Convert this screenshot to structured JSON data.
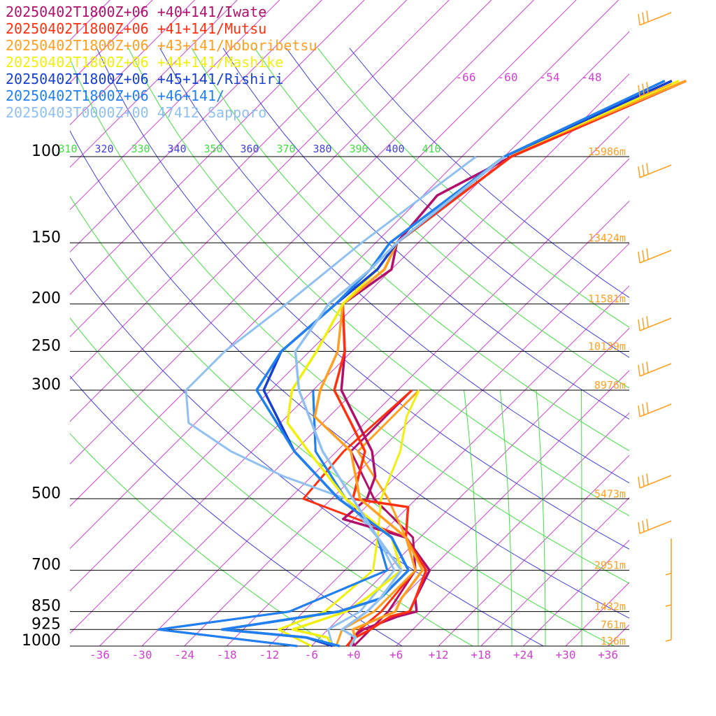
{
  "chart_data": {
    "type": "line",
    "title": "",
    "xlabel": "",
    "ylabel": "",
    "x_ticks": [
      "-36",
      "-30",
      "-24",
      "-18",
      "-12",
      "-6",
      "+0",
      "+6",
      "+12",
      "+18",
      "+24",
      "+30",
      "+36"
    ],
    "pressure_levels": [
      {
        "p": 100,
        "label": "100",
        "height": "15986m"
      },
      {
        "p": 150,
        "label": "150",
        "height": "13424m"
      },
      {
        "p": 200,
        "label": "200",
        "height": "11581m"
      },
      {
        "p": 250,
        "label": "250",
        "height": "10139m"
      },
      {
        "p": 300,
        "label": "300",
        "height": "8976m"
      },
      {
        "p": 500,
        "label": "500",
        "height": "5473m"
      },
      {
        "p": 700,
        "label": "700",
        "height": "2951m"
      },
      {
        "p": 850,
        "label": "850",
        "height": "1432m"
      },
      {
        "p": 925,
        "label": "925",
        "height": "761m"
      },
      {
        "p": 1000,
        "label": "1000",
        "height": "136m"
      }
    ],
    "theta_labels": [
      "310",
      "320",
      "330",
      "340",
      "350",
      "360",
      "370",
      "380",
      "390",
      "400",
      "410"
    ],
    "mixing_temp_labels": [
      "-66",
      "-60",
      "-54",
      "-48"
    ],
    "series": [
      {
        "name": "20250402T1800Z+06 +40+141/Iwate",
        "color": "#b0106c",
        "points": [
          [
            70,
            -33
          ],
          [
            100,
            -47
          ],
          [
            120,
            -52
          ],
          [
            150,
            -51
          ],
          [
            170,
            -48
          ],
          [
            200,
            -50
          ],
          [
            250,
            -43
          ],
          [
            300,
            -38
          ],
          [
            400,
            -25
          ],
          [
            450,
            -21
          ],
          [
            500,
            -19
          ],
          [
            550,
            -19.5
          ],
          [
            600,
            -8
          ],
          [
            700,
            0
          ],
          [
            800,
            2
          ],
          [
            850,
            4
          ],
          [
            870,
            2
          ],
          [
            925,
            -1
          ],
          [
            960,
            -1.5
          ],
          [
            1000,
            0
          ]
        ]
      },
      {
        "name": "20250402T1800Z+06 +41+141/Mutsu",
        "color": "#ff3010",
        "points": [
          [
            70,
            -33
          ],
          [
            100,
            -47
          ],
          [
            150,
            -51
          ],
          [
            170,
            -49
          ],
          [
            200,
            -50
          ],
          [
            250,
            -43
          ],
          [
            300,
            -39
          ],
          [
            350,
            -32
          ],
          [
            400,
            -26
          ],
          [
            500,
            -21
          ],
          [
            520,
            -12
          ],
          [
            600,
            -8
          ],
          [
            700,
            -0.5
          ],
          [
            800,
            2
          ],
          [
            850,
            3
          ],
          [
            870,
            1
          ],
          [
            925,
            0
          ],
          [
            960,
            -1
          ],
          [
            1000,
            -1
          ]
        ]
      },
      {
        "name": "20250402T1800Z+06 +43+141/Noboribetsu",
        "color": "#ffa020",
        "points": [
          [
            70,
            -33
          ],
          [
            100,
            -48
          ],
          [
            150,
            -51
          ],
          [
            170,
            -49
          ],
          [
            200,
            -50
          ],
          [
            250,
            -44
          ],
          [
            300,
            -41
          ],
          [
            340,
            -38
          ],
          [
            400,
            -28
          ],
          [
            500,
            -20
          ],
          [
            600,
            -8
          ],
          [
            700,
            -1
          ],
          [
            800,
            0
          ],
          [
            850,
            1
          ],
          [
            870,
            0
          ],
          [
            925,
            -2.5
          ],
          [
            960,
            -1
          ],
          [
            1000,
            -0.5
          ]
        ]
      },
      {
        "name": "20250402T1800Z+06 +44+141/Mashike",
        "color": "#f0f010",
        "points": [
          [
            70,
            -34
          ],
          [
            100,
            -48
          ],
          [
            150,
            -51
          ],
          [
            170,
            -50
          ],
          [
            200,
            -50
          ],
          [
            250,
            -47
          ],
          [
            300,
            -45
          ],
          [
            350,
            -41
          ],
          [
            400,
            -34
          ],
          [
            500,
            -22
          ],
          [
            600,
            -10
          ],
          [
            700,
            -4
          ],
          [
            800,
            -5
          ],
          [
            850,
            -6
          ],
          [
            925,
            -11
          ],
          [
            960,
            -5
          ],
          [
            1000,
            -3
          ]
        ]
      },
      {
        "name": "20250402T1800Z+06 +45+141/Rishiri",
        "color": "#1840d0",
        "points": [
          [
            70,
            -35
          ],
          [
            100,
            -48
          ],
          [
            150,
            -51
          ],
          [
            170,
            -50
          ],
          [
            200,
            -51
          ],
          [
            250,
            -52
          ],
          [
            300,
            -49
          ],
          [
            400,
            -36
          ],
          [
            500,
            -23
          ],
          [
            600,
            -10
          ],
          [
            700,
            -3
          ],
          [
            800,
            -3
          ],
          [
            850,
            -7
          ],
          [
            925,
            -21
          ],
          [
            960,
            -8
          ],
          [
            1000,
            -3
          ]
        ]
      },
      {
        "name": "20250402T1800Z+06 +46+141/",
        "color": "#2080f0",
        "points": [
          [
            70,
            -36
          ],
          [
            100,
            -48
          ],
          [
            150,
            -52
          ],
          [
            170,
            -51
          ],
          [
            200,
            -51
          ],
          [
            250,
            -52
          ],
          [
            300,
            -50
          ],
          [
            400,
            -36
          ],
          [
            500,
            -23
          ],
          [
            600,
            -10
          ],
          [
            700,
            -3
          ],
          [
            800,
            -3
          ],
          [
            850,
            -7
          ],
          [
            925,
            -21
          ],
          [
            960,
            -8
          ],
          [
            1000,
            -2
          ]
        ]
      },
      {
        "name": "20250403T0000Z+00 47412_Sapporo",
        "color": "#90c0f0",
        "points": [
          [
            100,
            -48
          ],
          [
            130,
            -50
          ],
          [
            150,
            -51
          ],
          [
            170,
            -51
          ],
          [
            200,
            -52
          ],
          [
            250,
            -50
          ],
          [
            300,
            -44
          ],
          [
            400,
            -32
          ],
          [
            500,
            -21
          ],
          [
            600,
            -12
          ],
          [
            700,
            -4
          ],
          [
            800,
            -3
          ],
          [
            850,
            -3
          ],
          [
            925,
            -4
          ],
          [
            960,
            -1
          ],
          [
            1000,
            -0.5
          ]
        ]
      }
    ],
    "dewpoint_series": [
      {
        "color": "#b0106c",
        "points": [
          [
            300,
            -28
          ],
          [
            400,
            -28
          ],
          [
            500,
            -18
          ],
          [
            600,
            -7
          ],
          [
            700,
            -2
          ],
          [
            850,
            0
          ],
          [
            925,
            0
          ],
          [
            1000,
            0
          ]
        ]
      },
      {
        "color": "#ff3010",
        "points": [
          [
            300,
            -28
          ],
          [
            400,
            -29
          ],
          [
            500,
            -28
          ],
          [
            600,
            -8
          ],
          [
            700,
            -2
          ],
          [
            850,
            -1
          ],
          [
            925,
            -1.5
          ],
          [
            1000,
            -1
          ]
        ]
      },
      {
        "color": "#ffa020",
        "points": [
          [
            300,
            -27
          ],
          [
            400,
            -27
          ],
          [
            500,
            -16
          ],
          [
            600,
            -8
          ],
          [
            700,
            -2
          ],
          [
            850,
            -2
          ],
          [
            925,
            -4
          ],
          [
            1000,
            -2.5
          ]
        ]
      },
      {
        "color": "#f0f010",
        "points": [
          [
            300,
            -27
          ],
          [
            340,
            -25
          ],
          [
            400,
            -21
          ],
          [
            500,
            -17
          ],
          [
            600,
            -12
          ],
          [
            700,
            -8
          ],
          [
            850,
            -9
          ],
          [
            925,
            -13
          ],
          [
            1000,
            -6
          ]
        ]
      },
      {
        "color": "#1840d0",
        "points": [
          [
            300,
            -42
          ],
          [
            400,
            -33
          ],
          [
            500,
            -22
          ],
          [
            600,
            -12
          ],
          [
            700,
            -6
          ],
          [
            850,
            -14
          ],
          [
            925,
            -30
          ],
          [
            1000,
            -8
          ]
        ]
      },
      {
        "color": "#2080f0",
        "points": [
          [
            300,
            -42
          ],
          [
            400,
            -33
          ],
          [
            500,
            -22
          ],
          [
            600,
            -12
          ],
          [
            700,
            -6
          ],
          [
            850,
            -14
          ],
          [
            925,
            -30
          ],
          [
            1000,
            -8
          ]
        ]
      },
      {
        "color": "#90c0f0",
        "points": [
          [
            100,
            -52
          ],
          [
            150,
            -56
          ],
          [
            200,
            -58
          ],
          [
            250,
            -60
          ],
          [
            300,
            -60
          ],
          [
            350,
            -55
          ],
          [
            400,
            -45
          ],
          [
            450,
            -34
          ],
          [
            500,
            -22
          ],
          [
            600,
            -12
          ],
          [
            700,
            -5
          ],
          [
            850,
            -4
          ],
          [
            925,
            -6
          ],
          [
            1000,
            -3
          ]
        ]
      }
    ],
    "wind_color": "#ffa020",
    "height_color": "#ffa020",
    "theta_color_a": "#4040e0",
    "theta_color_b": "#40e040",
    "isotherm_color": "#d040d0",
    "isobar_color": "#000000",
    "grid": true
  }
}
